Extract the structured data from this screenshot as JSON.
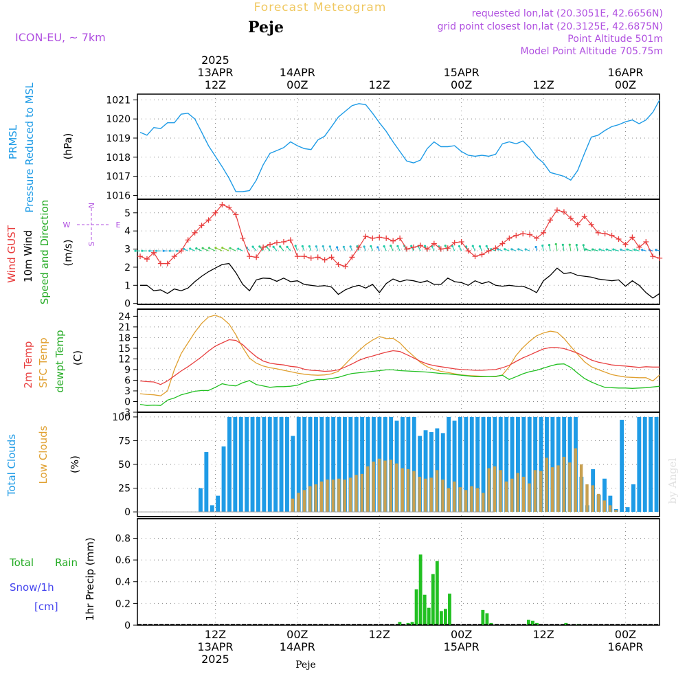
{
  "header": {
    "title": "Forecast Meteogram",
    "location": "Peje",
    "model": "ICON-EU, ~ 7km",
    "requested": "requested lon,lat (20.3051E, 42.6656N)",
    "gridpoint": "grid point closest lon,lat (20.3125E, 42.6875N)",
    "point_alt": "Point Altitude 501m",
    "model_alt": "Model Point Altitude 705.75m",
    "footer": "Peje",
    "watermark": "by Angel"
  },
  "time_axis": {
    "top_labels": [
      {
        "lines": [
          "2025",
          "13APR",
          "12Z"
        ],
        "step": 11
      },
      {
        "lines": [
          "14APR",
          "00Z"
        ],
        "step": 23
      },
      {
        "lines": [
          "12Z"
        ],
        "step": 35
      },
      {
        "lines": [
          "15APR",
          "00Z"
        ],
        "step": 47
      },
      {
        "lines": [
          "12Z"
        ],
        "step": 59
      },
      {
        "lines": [
          "16APR",
          "00Z"
        ],
        "step": 71
      }
    ],
    "bottom_labels": [
      {
        "lines": [
          "12Z",
          "13APR",
          "2025"
        ],
        "step": 11
      },
      {
        "lines": [
          "00Z",
          "14APR"
        ],
        "step": 23
      },
      {
        "lines": [
          "12Z"
        ],
        "step": 35
      },
      {
        "lines": [
          "00Z",
          "15APR"
        ],
        "step": 47
      },
      {
        "lines": [
          "12Z"
        ],
        "step": 59
      },
      {
        "lines": [
          "00Z",
          "16APR"
        ],
        "step": 71
      }
    ]
  },
  "panels": {
    "pressure": {
      "labels": [
        "PRMSL",
        "Pressure Reduced to MSL",
        "(hPa)"
      ],
      "ticks": [
        "1016",
        "1017",
        "1018",
        "1019",
        "1020",
        "1021"
      ],
      "ylim": [
        1015.8,
        1021.3
      ]
    },
    "wind": {
      "labels": [
        "Wind GUST",
        "10m Wind",
        "Speed and Direction",
        "(m/s)"
      ],
      "ticks": [
        "0",
        "1",
        "2",
        "3",
        "4",
        "5"
      ],
      "compass": [
        "N",
        "W",
        "E",
        "S"
      ],
      "ylim": [
        -0.05,
        5.75
      ]
    },
    "temp": {
      "labels": [
        "2m Temp",
        "SFC Temp",
        "dewpt Temp",
        "(C)"
      ],
      "ticks": [
        "-3",
        "0",
        "3",
        "6",
        "9",
        "12",
        "15",
        "18",
        "21",
        "24"
      ],
      "ylim": [
        -3,
        26
      ]
    },
    "clouds": {
      "labels": [
        "Total Clouds",
        "Low Clouds",
        "(%)"
      ],
      "ticks": [
        "0",
        "25",
        "50",
        "75",
        "100"
      ],
      "ylim": [
        -5,
        105
      ]
    },
    "precip": {
      "labels": [
        "Total",
        "Rain",
        "Snow/1h",
        "[cm]",
        "1hr Precip (mm)"
      ],
      "ticks": [
        "0",
        "0.2",
        "0.4",
        "0.6",
        "0.8"
      ],
      "ylim": [
        0,
        0.98
      ]
    }
  },
  "colors": {
    "pressure": "#1e9be6",
    "gust": "#e83c3c",
    "wind": "#000000",
    "temp2m": "#e84040",
    "sfc": "#e0a030",
    "dewpt": "#22c022",
    "total_clouds": "#1e9be6",
    "low_clouds": "#c8a050",
    "precip": "#22c022",
    "title": "#f0c860",
    "purple": "#b050e0",
    "snow": "#4444ee"
  },
  "chart_data": [
    {
      "type": "line",
      "name": "Pressure Reduced to MSL",
      "ylabel": "(hPa)",
      "x_unit": "hourly step from 13APR 01Z",
      "y": [
        1019.3,
        1019.15,
        1019.55,
        1019.5,
        1019.8,
        1019.8,
        1020.25,
        1020.3,
        1020.0,
        1019.3,
        1018.6,
        1018.05,
        1017.5,
        1016.9,
        1016.2,
        1016.2,
        1016.25,
        1016.8,
        1017.6,
        1018.2,
        1018.35,
        1018.5,
        1018.8,
        1018.6,
        1018.45,
        1018.4,
        1018.9,
        1019.1,
        1019.6,
        1020.1,
        1020.4,
        1020.7,
        1020.8,
        1020.75,
        1020.3,
        1019.8,
        1019.35,
        1018.8,
        1018.3,
        1017.8,
        1017.7,
        1017.85,
        1018.45,
        1018.8,
        1018.55,
        1018.55,
        1018.6,
        1018.3,
        1018.1,
        1018.05,
        1018.1,
        1018.05,
        1018.15,
        1018.7,
        1018.8,
        1018.7,
        1018.85,
        1018.5,
        1018.0,
        1017.7,
        1017.2,
        1017.1,
        1017.0,
        1016.8,
        1017.3,
        1018.2,
        1019.05,
        1019.15,
        1019.4,
        1019.6,
        1019.7,
        1019.85,
        1019.95,
        1019.75,
        1019.95,
        1020.35,
        1021.0
      ]
    },
    {
      "type": "line",
      "name": "Wind GUST",
      "ylabel": "(m/s)",
      "y": [
        2.6,
        2.45,
        2.8,
        2.2,
        2.2,
        2.6,
        2.9,
        3.5,
        3.9,
        4.3,
        4.6,
        5.0,
        5.45,
        5.3,
        4.9,
        3.6,
        2.6,
        2.55,
        3.1,
        3.25,
        3.35,
        3.4,
        3.5,
        2.6,
        2.6,
        2.5,
        2.55,
        2.4,
        2.55,
        2.15,
        2.05,
        2.55,
        3.1,
        3.7,
        3.6,
        3.65,
        3.6,
        3.45,
        3.6,
        3.0,
        3.1,
        3.2,
        3.0,
        3.3,
        3.0,
        3.05,
        3.35,
        3.4,
        2.9,
        2.6,
        2.7,
        2.9,
        3.05,
        3.3,
        3.6,
        3.75,
        3.85,
        3.8,
        3.6,
        3.9,
        4.6,
        5.15,
        5.05,
        4.7,
        4.35,
        4.8,
        4.35,
        3.9,
        3.85,
        3.75,
        3.55,
        3.25,
        3.65,
        3.1,
        3.4,
        2.6,
        2.5
      ]
    },
    {
      "type": "line",
      "name": "10m Wind",
      "ylabel": "(m/s)",
      "y": [
        1.0,
        1.0,
        0.7,
        0.75,
        0.55,
        0.8,
        0.7,
        0.85,
        1.2,
        1.5,
        1.75,
        1.95,
        2.15,
        2.2,
        1.7,
        1.05,
        0.7,
        1.3,
        1.4,
        1.38,
        1.22,
        1.4,
        1.2,
        1.25,
        1.05,
        1.0,
        0.95,
        0.98,
        0.9,
        0.5,
        0.75,
        0.9,
        1.0,
        0.85,
        1.05,
        0.6,
        1.1,
        1.35,
        1.2,
        1.3,
        1.25,
        1.15,
        1.25,
        1.05,
        1.05,
        1.4,
        1.2,
        1.15,
        1.0,
        1.25,
        1.1,
        1.2,
        1.0,
        0.95,
        1.0,
        0.95,
        0.95,
        0.8,
        0.6,
        1.25,
        1.55,
        1.95,
        1.65,
        1.7,
        1.55,
        1.5,
        1.45,
        1.35,
        1.3,
        1.25,
        1.3,
        0.95,
        1.25,
        1.0,
        0.6,
        0.3,
        0.55
      ]
    },
    {
      "type": "line",
      "name": "2m Temp",
      "ylabel": "(C)",
      "y": [
        5.8,
        5.6,
        5.5,
        4.8,
        5.8,
        7.2,
        8.6,
        9.8,
        11.2,
        12.6,
        14.2,
        15.6,
        16.5,
        17.4,
        17.2,
        16.0,
        14.2,
        12.6,
        11.4,
        10.8,
        10.5,
        10.3,
        9.9,
        9.7,
        9.1,
        8.8,
        8.7,
        8.5,
        8.6,
        8.9,
        9.7,
        10.6,
        11.6,
        12.3,
        12.8,
        13.4,
        13.9,
        14.3,
        14.1,
        13.2,
        12.3,
        11.3,
        10.6,
        10.1,
        9.8,
        9.5,
        9.2,
        9.0,
        8.9,
        8.8,
        8.8,
        8.9,
        9.0,
        9.5,
        10.2,
        11.3,
        12.3,
        13.1,
        14.0,
        14.8,
        15.2,
        15.2,
        14.9,
        14.3,
        13.6,
        12.7,
        11.7,
        11.1,
        10.7,
        10.3,
        10.1,
        10.0,
        9.8,
        9.6,
        9.8,
        9.7,
        9.7
      ]
    },
    {
      "type": "line",
      "name": "SFC Temp",
      "ylabel": "(C)",
      "y": [
        2.2,
        2.0,
        1.9,
        1.6,
        3.0,
        9.0,
        13.5,
        16.5,
        19.5,
        22.0,
        23.8,
        24.3,
        23.5,
        21.8,
        18.8,
        15.2,
        12.2,
        10.8,
        10.0,
        9.5,
        9.2,
        8.8,
        8.4,
        8.0,
        7.7,
        7.5,
        7.4,
        7.5,
        7.8,
        8.5,
        10.5,
        12.5,
        14.3,
        16.0,
        17.3,
        18.3,
        17.7,
        17.8,
        16.5,
        14.5,
        12.8,
        11.0,
        9.8,
        9.0,
        8.5,
        8.2,
        7.8,
        7.5,
        7.3,
        7.2,
        7.1,
        7.0,
        7.0,
        7.5,
        9.8,
        13.0,
        15.2,
        17.0,
        18.5,
        19.3,
        19.8,
        19.5,
        17.8,
        15.5,
        13.3,
        11.2,
        9.8,
        9.0,
        8.3,
        7.6,
        7.2,
        6.9,
        6.8,
        6.7,
        6.7,
        5.8,
        7.5
      ]
    },
    {
      "type": "line",
      "name": "dewpt Temp",
      "ylabel": "(C)",
      "y": [
        -0.8,
        -1.1,
        -1.0,
        -1.1,
        0.4,
        1.0,
        1.9,
        2.4,
        2.9,
        3.1,
        3.1,
        4.0,
        5.0,
        4.6,
        4.4,
        5.3,
        5.9,
        4.8,
        4.4,
        4.0,
        4.2,
        4.2,
        4.3,
        4.6,
        5.3,
        5.9,
        6.2,
        6.2,
        6.5,
        6.8,
        7.4,
        7.9,
        8.1,
        8.3,
        8.5,
        8.7,
        8.9,
        8.9,
        8.7,
        8.6,
        8.5,
        8.4,
        8.3,
        8.1,
        7.9,
        7.8,
        7.6,
        7.4,
        7.2,
        7.0,
        7.0,
        7.0,
        7.1,
        7.4,
        6.2,
        7.0,
        7.8,
        8.4,
        8.8,
        9.4,
        10.0,
        10.5,
        10.6,
        9.6,
        8.0,
        6.5,
        5.5,
        4.7,
        4.0,
        3.9,
        3.8,
        3.8,
        3.7,
        3.8,
        3.9,
        4.1,
        4.3
      ]
    },
    {
      "type": "bar",
      "name": "Total Clouds",
      "ylabel": "(%)",
      "values": [
        0,
        0,
        0,
        0,
        0,
        0,
        0,
        0,
        0,
        0,
        25,
        63,
        7,
        17,
        69,
        100,
        100,
        100,
        100,
        100,
        100,
        100,
        100,
        100,
        100,
        100,
        80,
        100,
        100,
        100,
        100,
        100,
        100,
        100,
        100,
        100,
        100,
        100,
        100,
        100,
        100,
        100,
        100,
        100,
        96,
        100,
        100,
        100,
        80,
        86,
        84,
        88,
        83,
        100,
        96,
        100,
        100,
        100,
        100,
        100,
        100,
        100,
        100,
        100,
        100,
        100,
        100,
        100,
        100,
        100,
        100,
        100,
        100,
        100,
        100,
        100,
        37,
        7,
        45,
        18,
        35,
        17,
        3,
        97,
        5,
        29,
        100,
        100,
        100,
        100
      ],
      "x_start_step": 0,
      "note": "hourly bars"
    },
    {
      "type": "bar",
      "name": "Low Clouds",
      "ylabel": "(%)",
      "values": [
        0,
        0,
        0,
        0,
        0,
        0,
        0,
        0,
        0,
        0,
        0,
        0,
        0,
        0,
        0,
        0,
        0,
        0,
        0,
        0,
        0,
        0,
        0,
        0,
        0,
        0,
        14,
        20,
        23,
        27,
        29,
        32,
        34,
        34,
        35,
        34,
        36,
        39,
        40,
        48,
        53,
        56,
        54,
        55,
        51,
        46,
        45,
        43,
        37,
        35,
        36,
        44,
        34,
        25,
        32,
        26,
        23,
        27,
        25,
        20,
        46,
        48,
        44,
        32,
        35,
        41,
        37,
        30,
        44,
        43,
        57,
        47,
        49,
        58,
        52,
        67,
        50,
        29,
        28,
        19,
        12,
        7,
        2,
        0,
        0,
        0,
        0,
        0,
        0,
        0
      ]
    },
    {
      "type": "bar",
      "name": "1hr Precip (mm)",
      "ylabel": "1hr Precip (mm)",
      "values": [
        0,
        0,
        0,
        0,
        0,
        0,
        0,
        0,
        0,
        0,
        0,
        0,
        0,
        0,
        0,
        0,
        0,
        0,
        0,
        0,
        0,
        0,
        0,
        0,
        0,
        0,
        0,
        0,
        0,
        0,
        0,
        0,
        0,
        0,
        0,
        0,
        0,
        0,
        0,
        0,
        0,
        0,
        0,
        0,
        0,
        0,
        0,
        0,
        0,
        0,
        0,
        0,
        0,
        0,
        0,
        0,
        0,
        0,
        0,
        0,
        0,
        0,
        0.03,
        0,
        0.02,
        0.03,
        0.33,
        0.65,
        0.28,
        0.16,
        0.47,
        0.59,
        0.13,
        0.15,
        0.29,
        0,
        0,
        0,
        0,
        0,
        0,
        0,
        0.14,
        0.11,
        0.02,
        0,
        0,
        0,
        0,
        0,
        0,
        0,
        0,
        0.05,
        0.04,
        0.02,
        0,
        0,
        0,
        0,
        0,
        0,
        0.02,
        0,
        0,
        0.01,
        0,
        0,
        0,
        0,
        0,
        0,
        0,
        0,
        0,
        0,
        0,
        0,
        0,
        0,
        0,
        0,
        0,
        0,
        0
      ]
    }
  ]
}
